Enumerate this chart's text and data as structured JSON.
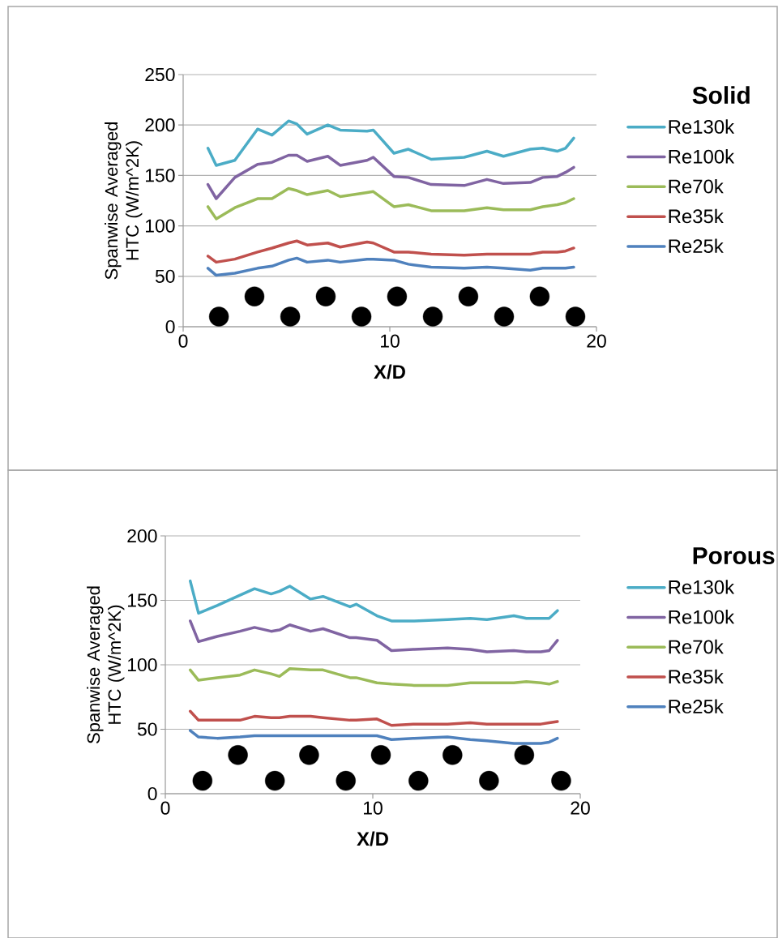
{
  "chart_data": [
    {
      "type": "line",
      "legend_title": "Solid",
      "xlabel": "X/D",
      "ylabel": "Spanwise Averaged HTC (W/m^2K)",
      "xlim": [
        0,
        20
      ],
      "xticks": [
        0,
        10,
        20
      ],
      "ylim": [
        0,
        250
      ],
      "yticks": [
        0,
        50,
        100,
        150,
        200,
        250
      ],
      "grid": "y",
      "legend": "right",
      "x": [
        1.2,
        1.6,
        2.5,
        3.6,
        4.3,
        5.1,
        5.5,
        6.0,
        7.0,
        7.6,
        8.9,
        9.2,
        10.2,
        10.9,
        12.0,
        13.6,
        14.7,
        15.5,
        16.8,
        17.4,
        18.1,
        18.5,
        18.9
      ],
      "series": [
        {
          "name": "Re130k",
          "color": "#4bacc6",
          "values": [
            177,
            160,
            165,
            196,
            190,
            204,
            201,
            191,
            200,
            195,
            194,
            195,
            172,
            176,
            166,
            168,
            174,
            169,
            176,
            177,
            174,
            177,
            187
          ]
        },
        {
          "name": "Re100k",
          "color": "#8064a2",
          "values": [
            141,
            127,
            148,
            161,
            163,
            170,
            170,
            164,
            169,
            160,
            165,
            168,
            149,
            148,
            141,
            140,
            146,
            142,
            143,
            148,
            149,
            153,
            158
          ]
        },
        {
          "name": "Re70k",
          "color": "#9bbb59",
          "values": [
            119,
            107,
            118,
            127,
            127,
            137,
            135,
            131,
            135,
            129,
            133,
            134,
            119,
            121,
            115,
            115,
            118,
            116,
            116,
            119,
            121,
            123,
            127
          ]
        },
        {
          "name": "Re35k",
          "color": "#c0504d",
          "values": [
            70,
            64,
            67,
            74,
            78,
            83,
            85,
            81,
            83,
            79,
            84,
            83,
            74,
            74,
            72,
            71,
            72,
            72,
            72,
            74,
            74,
            75,
            78
          ]
        },
        {
          "name": "Re25k",
          "color": "#4f81bd",
          "values": [
            58,
            51,
            53,
            58,
            60,
            66,
            68,
            64,
            66,
            64,
            67,
            67,
            66,
            62,
            59,
            58,
            59,
            58,
            56,
            58,
            58,
            58,
            59
          ]
        },
        {
          "type": "scatter",
          "marker": "circle",
          "color": "#000000",
          "x": [
            1.73,
            3.45,
            5.18,
            6.9,
            8.63,
            10.35,
            12.08,
            13.8,
            15.53,
            17.25,
            18.98
          ],
          "values": [
            10,
            30,
            10,
            30,
            10,
            30,
            10,
            30,
            10,
            30,
            10
          ]
        }
      ]
    },
    {
      "type": "line",
      "legend_title": "Porous",
      "xlabel": "X/D",
      "ylabel": "Spanwise Averaged HTC (W/m^2K)",
      "xlim": [
        0,
        20
      ],
      "xticks": [
        0,
        10,
        20
      ],
      "ylim": [
        0,
        200
      ],
      "yticks": [
        0,
        50,
        100,
        150,
        200
      ],
      "grid": "y",
      "legend": "right",
      "x": [
        1.2,
        1.6,
        2.5,
        3.6,
        4.3,
        5.1,
        5.5,
        6.0,
        7.0,
        7.6,
        8.9,
        9.2,
        10.2,
        10.9,
        12.0,
        13.6,
        14.7,
        15.5,
        16.8,
        17.4,
        18.1,
        18.5,
        18.9
      ],
      "series": [
        {
          "name": "Re130k",
          "color": "#4bacc6",
          "values": [
            165,
            140,
            146,
            154,
            159,
            155,
            157,
            161,
            151,
            153,
            145,
            147,
            138,
            134,
            134,
            135,
            136,
            135,
            138,
            136,
            136,
            136,
            142
          ]
        },
        {
          "name": "Re100k",
          "color": "#8064a2",
          "values": [
            134,
            118,
            122,
            126,
            129,
            126,
            127,
            131,
            126,
            128,
            121,
            121,
            119,
            111,
            112,
            113,
            112,
            110,
            111,
            110,
            110,
            111,
            119
          ]
        },
        {
          "name": "Re70k",
          "color": "#9bbb59",
          "values": [
            96,
            88,
            90,
            92,
            96,
            93,
            91,
            97,
            96,
            96,
            90,
            90,
            86,
            85,
            84,
            84,
            86,
            86,
            86,
            87,
            86,
            85,
            87
          ]
        },
        {
          "name": "Re35k",
          "color": "#c0504d",
          "values": [
            64,
            57,
            57,
            57,
            60,
            59,
            59,
            60,
            60,
            59,
            57,
            57,
            58,
            53,
            54,
            54,
            55,
            54,
            54,
            54,
            54,
            55,
            56
          ]
        },
        {
          "name": "Re25k",
          "color": "#4f81bd",
          "values": [
            49,
            44,
            43,
            44,
            45,
            45,
            45,
            45,
            45,
            45,
            45,
            45,
            45,
            42,
            43,
            44,
            42,
            41,
            39,
            39,
            39,
            40,
            43
          ]
        },
        {
          "type": "scatter",
          "marker": "circle",
          "color": "#000000",
          "x": [
            1.79,
            3.5,
            5.28,
            6.93,
            8.7,
            10.39,
            12.2,
            13.84,
            15.6,
            17.3,
            19.08
          ],
          "values": [
            10,
            30,
            10,
            30,
            10,
            30,
            10,
            30,
            10,
            30,
            10
          ]
        }
      ]
    }
  ]
}
